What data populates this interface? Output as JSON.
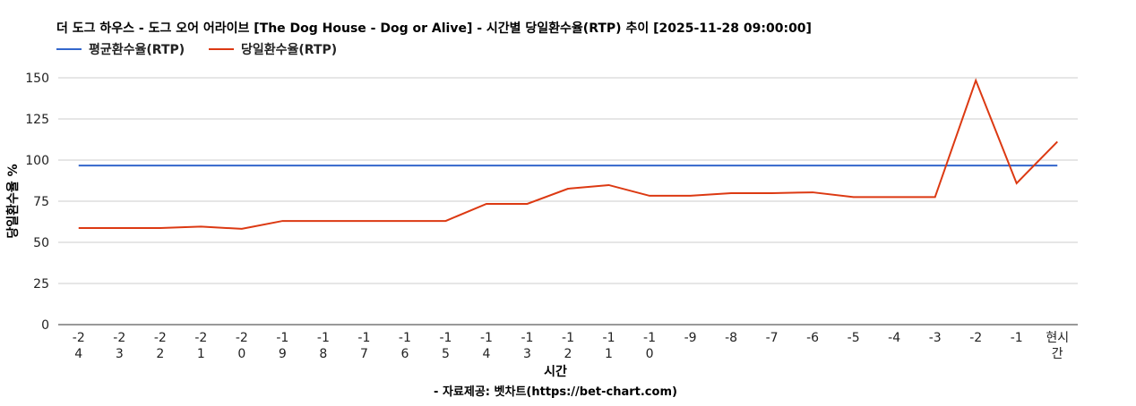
{
  "chart_data": {
    "type": "line",
    "title": "더 도그 하우스 - 도그 오어 어라이브 [The Dog House - Dog or Alive] - 시간별 당일환수율(RTP) 추이 [2025-11-28 09:00:00]",
    "xlabel": "시간",
    "ylabel": "당일환수율 %",
    "footer": "- 자료제공: 벳차트(https://bet-chart.com)",
    "categories": [
      "-24",
      "-23",
      "-22",
      "-21",
      "-20",
      "-19",
      "-18",
      "-17",
      "-16",
      "-15",
      "-14",
      "-13",
      "-12",
      "-11",
      "-10",
      "-9",
      "-8",
      "-7",
      "-6",
      "-5",
      "-4",
      "-3",
      "-2",
      "-1",
      "현시간"
    ],
    "ylim": [
      0,
      150
    ],
    "yticks": [
      0,
      25,
      50,
      75,
      100,
      125,
      150
    ],
    "grid": true,
    "legend": "top-left",
    "series": [
      {
        "name": "평균환수율(RTP)",
        "color": "#3366cc",
        "values": [
          96.7,
          96.7,
          96.7,
          96.7,
          96.7,
          96.7,
          96.7,
          96.7,
          96.7,
          96.7,
          96.7,
          96.7,
          96.7,
          96.7,
          96.7,
          96.7,
          96.7,
          96.7,
          96.7,
          96.7,
          96.7,
          96.7,
          96.7,
          96.7,
          96.7
        ]
      },
      {
        "name": "당일환수율(RTP)",
        "color": "#dc3912",
        "values": [
          58.7,
          58.7,
          58.7,
          59.6,
          58.2,
          63.0,
          63.0,
          63.0,
          63.0,
          63.0,
          73.4,
          73.4,
          82.6,
          84.8,
          78.3,
          78.3,
          79.9,
          79.9,
          80.4,
          77.5,
          77.5,
          77.5,
          148.4,
          85.9,
          111.2
        ]
      }
    ]
  }
}
